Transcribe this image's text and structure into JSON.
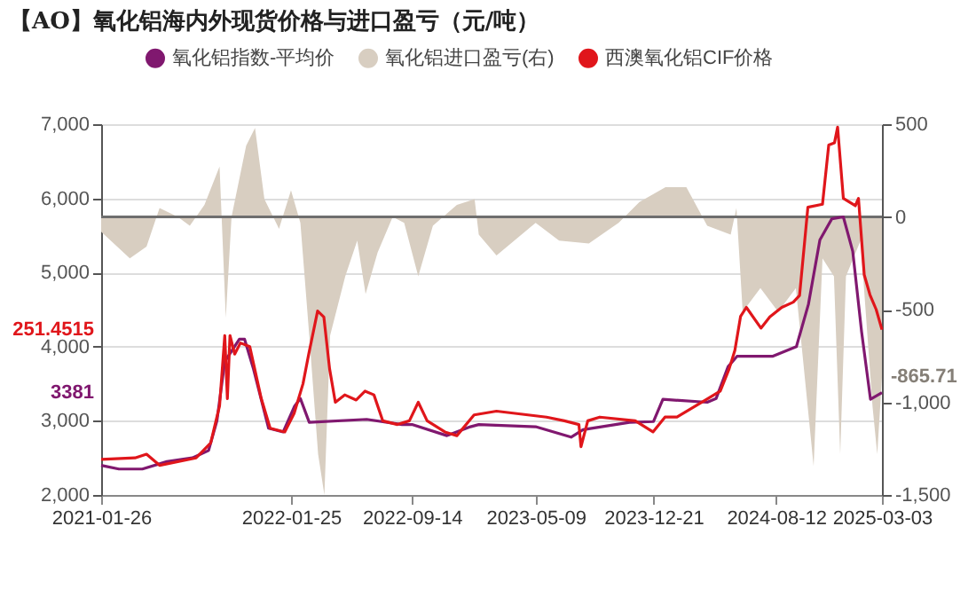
{
  "chart_data": {
    "type": "line",
    "title": "【AO】氧化铝海内外现货价格与进口盈亏（元/吨）",
    "xlim": [
      "2021-01-26",
      "2025-03-03"
    ],
    "xticks": [
      "2021-01-26",
      "2022-01-25",
      "2022-09-14",
      "2023-05-09",
      "2023-12-21",
      "2024-08-12",
      "2025-03-03"
    ],
    "ylim": [
      2000,
      7000
    ],
    "yticks": [
      {
        "value": 2000,
        "label": "2,000"
      },
      {
        "value": 3000,
        "label": "3,000"
      },
      {
        "value": 4000,
        "label": "4,000"
      },
      {
        "value": 5000,
        "label": "5,000"
      },
      {
        "value": 6000,
        "label": "6,000"
      },
      {
        "value": 7000,
        "label": "7,000"
      }
    ],
    "y2lim": [
      -1500,
      500
    ],
    "y2ticks": [
      {
        "value": -1500,
        "label": "-1,500"
      },
      {
        "value": -1000,
        "label": "-1,000"
      },
      {
        "value": -500,
        "label": "-500"
      },
      0,
      500
    ],
    "grid": "y",
    "legend": "top",
    "ref_lines": [
      {
        "axis": "y2",
        "value": 0,
        "color": "#6e6e6e"
      }
    ],
    "annotations": [
      "3381",
      "-865.71",
      "251.4515"
    ],
    "series": [
      {
        "name": "氧化铝指数-平均价",
        "color": "#80186f",
        "x": [
          "2021-01-26",
          "2021-03-01",
          "2021-04-15",
          "2021-06-01",
          "2021-07-20",
          "2021-08-20",
          "2021-09-05",
          "2021-09-20",
          "2021-10-18",
          "2021-10-28",
          "2021-11-14",
          "2021-12-13",
          "2022-01-10",
          "2022-02-01",
          "2022-02-12",
          "2022-03-01",
          "2022-06-19",
          "2022-08-26",
          "2022-09-14",
          "2022-11-20",
          "2023-01-04",
          "2023-01-20",
          "2023-05-09",
          "2023-07-16",
          "2023-08-08",
          "2023-11-05",
          "2023-12-21",
          "2024-01-08",
          "2024-04-02",
          "2024-04-19",
          "2024-05-12",
          "2024-05-29",
          "2024-08-05",
          "2024-09-20",
          "2024-10-13",
          "2024-11-04",
          "2024-11-27",
          "2024-12-19",
          "2025-01-06",
          "2025-01-23",
          "2025-02-09",
          "2025-03-03"
        ],
        "values": [
          2400,
          2350,
          2350,
          2450,
          2500,
          2600,
          3000,
          3800,
          4100,
          4100,
          3700,
          2900,
          2850,
          3200,
          3300,
          2980,
          3020,
          2950,
          2950,
          2800,
          2920,
          2950,
          2920,
          2780,
          2880,
          2980,
          2990,
          3290,
          3250,
          3300,
          3730,
          3870,
          3870,
          4000,
          4570,
          5440,
          5725,
          5750,
          5285,
          4200,
          3290,
          3381
        ]
      },
      {
        "name": "氧化铝进口盈亏(右)",
        "type": "area",
        "axis": "y2",
        "color": "#d8cec1",
        "x": [
          "2021-01-26",
          "2021-03-22",
          "2021-04-23",
          "2021-05-18",
          "2021-06-22",
          "2021-07-15",
          "2021-08-12",
          "2021-09-10",
          "2021-09-22",
          "2021-10-03",
          "2021-10-31",
          "2021-11-17",
          "2021-12-05",
          "2022-01-02",
          "2022-01-25",
          "2022-02-12",
          "2022-03-01",
          "2022-03-18",
          "2022-03-30",
          "2022-04-10",
          "2022-05-09",
          "2022-06-01",
          "2022-06-17",
          "2022-07-10",
          "2022-08-08",
          "2022-08-30",
          "2022-09-26",
          "2022-10-24",
          "2022-12-09",
          "2023-01-12",
          "2023-01-20",
          "2023-02-23",
          "2023-05-09",
          "2023-06-23",
          "2023-08-19",
          "2023-10-15",
          "2023-11-24",
          "2024-01-13",
          "2024-02-22",
          "2024-04-02",
          "2024-05-17",
          "2024-05-28",
          "2024-06-09",
          "2024-07-13",
          "2024-08-16",
          "2024-09-19",
          "2024-10-23",
          "2024-11-09",
          "2024-12-01",
          "2024-12-13",
          "2024-12-24",
          "2025-01-21",
          "2025-02-13",
          "2025-02-22",
          "2025-03-03"
        ],
        "values": [
          -80,
          -224,
          -160,
          48,
          0,
          -48,
          64,
          272,
          -544,
          0,
          384,
          480,
          96,
          -64,
          144,
          -32,
          -640,
          -1280,
          -1500,
          -640,
          -320,
          -128,
          -416,
          -192,
          0,
          -32,
          -320,
          -48,
          64,
          96,
          -96,
          -208,
          -32,
          -128,
          -144,
          -32,
          80,
          160,
          160,
          -48,
          -96,
          48,
          -512,
          -384,
          -512,
          -384,
          -1344,
          -224,
          -320,
          -1280,
          -320,
          -128,
          -1024,
          -1280,
          -865.71
        ]
      },
      {
        "name": "西澳氧化铝CIF价格",
        "color": "#e0161b",
        "x": [
          "2021-01-26",
          "2021-04-01",
          "2021-04-23",
          "2021-05-18",
          "2021-07-27",
          "2021-08-24",
          "2021-09-10",
          "2021-09-20",
          "2021-09-25",
          "2021-09-30",
          "2021-10-09",
          "2021-10-20",
          "2021-11-07",
          "2021-11-29",
          "2021-12-16",
          "2022-01-13",
          "2022-01-31",
          "2022-02-17",
          "2022-02-28",
          "2022-03-17",
          "2022-03-29",
          "2022-04-09",
          "2022-04-20",
          "2022-05-08",
          "2022-05-30",
          "2022-06-16",
          "2022-07-03",
          "2022-07-20",
          "2022-08-17",
          "2022-09-09",
          "2022-09-26",
          "2022-10-13",
          "2022-11-16",
          "2022-12-09",
          "2023-01-11",
          "2023-02-23",
          "2023-05-30",
          "2023-07-03",
          "2023-07-31",
          "2023-08-04",
          "2023-08-17",
          "2023-09-09",
          "2023-11-16",
          "2023-12-20",
          "2024-01-12",
          "2024-02-04",
          "2024-04-01",
          "2024-04-27",
          "2024-05-14",
          "2024-05-25",
          "2024-06-05",
          "2024-06-16",
          "2024-07-14",
          "2024-07-31",
          "2024-08-23",
          "2024-09-14",
          "2024-09-26",
          "2024-10-12",
          "2024-11-09",
          "2024-11-21",
          "2024-12-02",
          "2024-12-08",
          "2024-12-19",
          "2025-01-11",
          "2025-01-17",
          "2025-01-28",
          "2025-02-08",
          "2025-02-20",
          "2025-03-03"
        ],
        "values": [
          2480,
          2500,
          2550,
          2400,
          2500,
          2700,
          3200,
          4150,
          3300,
          4150,
          3900,
          4050,
          4000,
          3300,
          2900,
          2850,
          3100,
          3500,
          3900,
          4480,
          4400,
          3700,
          3250,
          3350,
          3280,
          3400,
          3350,
          3000,
          2950,
          3000,
          3250,
          3000,
          2850,
          2800,
          3080,
          3130,
          3050,
          3000,
          2950,
          2650,
          3000,
          3050,
          3000,
          2850,
          3050,
          3050,
          3290,
          3400,
          3700,
          3950,
          4410,
          4530,
          4250,
          4400,
          4530,
          4600,
          4690,
          5880,
          5920,
          6720,
          6750,
          6960,
          6000,
          5900,
          6000,
          4970,
          4700,
          4500,
          4230
        ]
      }
    ]
  }
}
